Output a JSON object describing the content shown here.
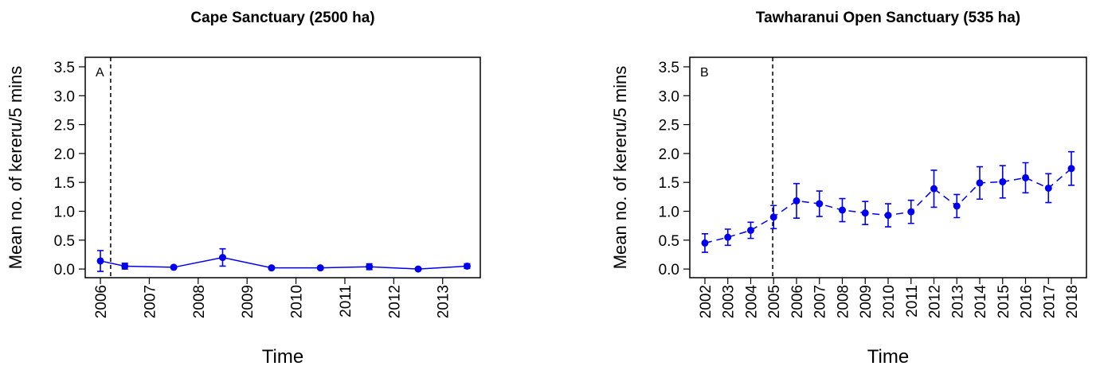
{
  "chart_data": [
    {
      "type": "line",
      "title": "Cape Sanctuary (2500 ha)",
      "x_label": "Time",
      "y_label": "Mean no. of kereru/5 mins",
      "annotation": "A",
      "line_style": "solid",
      "vline": 2006.21,
      "xlim": [
        2005.69,
        2013.77
      ],
      "xticks": [
        2006,
        2007,
        2008,
        2009,
        2010,
        2011,
        2012,
        2013
      ],
      "ylim": [
        -0.15,
        3.665
      ],
      "yticks": [
        {
          "value": 0,
          "label": "0.0"
        },
        0.5,
        {
          "value": 1,
          "label": "1.0"
        },
        1.5,
        {
          "value": 2,
          "label": "2.0"
        },
        2.5,
        {
          "value": 3,
          "label": "3.0"
        },
        3.5
      ],
      "x": [
        2006.0,
        2006.5,
        2007.5,
        2008.5,
        2009.5,
        2010.5,
        2011.5,
        2012.5,
        2013.5
      ],
      "series": [
        {
          "color": "#0000ee",
          "values": [
            0.14,
            0.05,
            0.03,
            0.2,
            0.02,
            0.02,
            0.04,
            0.0,
            0.05
          ],
          "errors": [
            0.18,
            0.05,
            0.02,
            0.15,
            0.02,
            0.02,
            0.05,
            0.01,
            0.04
          ]
        }
      ]
    },
    {
      "type": "line",
      "title": "Tawharanui Open Sanctuary (535 ha)",
      "x_label": "Time",
      "y_label": "Mean no. of kereru/5 mins",
      "annotation": "B",
      "line_style": "dashed",
      "vline": 2004.96,
      "xlim": [
        2001.34,
        2018.66
      ],
      "xticks": [
        2002,
        2003,
        2004,
        2005,
        2006,
        2007,
        2008,
        2009,
        2010,
        2011,
        2012,
        2013,
        2014,
        2015,
        2016,
        2017,
        2018
      ],
      "ylim": [
        -0.15,
        3.665
      ],
      "yticks": [
        {
          "value": 0,
          "label": "0.0"
        },
        0.5,
        {
          "value": 1,
          "label": "1.0"
        },
        1.5,
        {
          "value": 2,
          "label": "2.0"
        },
        2.5,
        {
          "value": 3,
          "label": "3.0"
        },
        3.5
      ],
      "x": [
        2002,
        2003,
        2004,
        2005,
        2006,
        2007,
        2008,
        2009,
        2010,
        2011,
        2012,
        2013,
        2014,
        2015,
        2016,
        2017,
        2018
      ],
      "series": [
        {
          "color": "#0000ee",
          "values": [
            0.45,
            0.55,
            0.67,
            0.9,
            1.18,
            1.13,
            1.02,
            0.97,
            0.93,
            0.99,
            1.39,
            1.09,
            1.49,
            1.51,
            1.58,
            1.4,
            1.74
          ],
          "errors": [
            0.16,
            0.14,
            0.14,
            0.2,
            0.3,
            0.22,
            0.2,
            0.2,
            0.2,
            0.2,
            0.32,
            0.2,
            0.28,
            0.28,
            0.26,
            0.25,
            0.29
          ]
        }
      ]
    }
  ]
}
